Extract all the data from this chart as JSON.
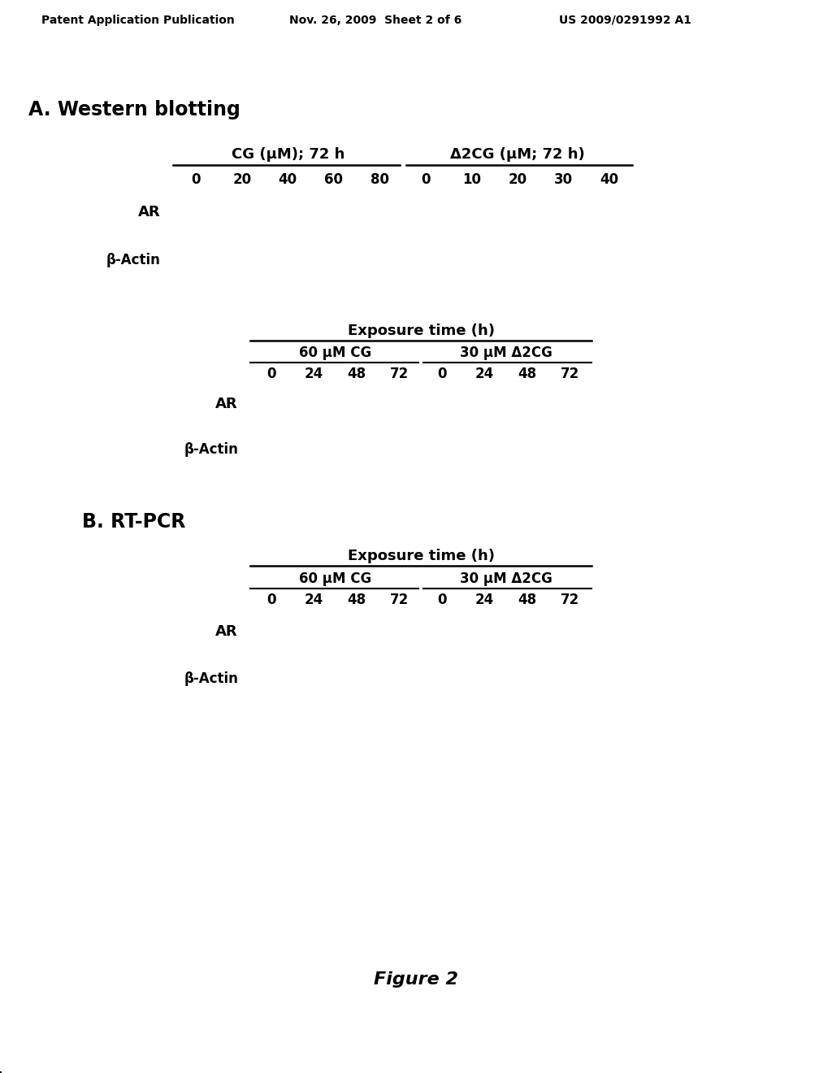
{
  "bg_color": "#ffffff",
  "header_left": "Patent Application Publication",
  "header_mid": "Nov. 26, 2009  Sheet 2 of 6",
  "header_right": "US 2009/0291992 A1",
  "section_A_title": "A. Western blotting",
  "section_B_title": "B. RT-PCR",
  "figure_caption": "Figure 2",
  "panel1": {
    "col_header_left": "CG (μM); 72 h",
    "col_header_right": "Δ2CG (μM; 72 h)",
    "col_ticks": [
      "0",
      "20",
      "40",
      "60",
      "80",
      "0",
      "10",
      "20",
      "30",
      "40"
    ],
    "n_lanes": 10,
    "rows": [
      "AR",
      "β-Actin"
    ]
  },
  "panel2": {
    "exposure_title": "Exposure time (h)",
    "col_header_left": "60 μM CG",
    "col_header_right": "30 μM Δ2CG",
    "col_ticks": [
      "0",
      "24",
      "48",
      "72",
      "0",
      "24",
      "48",
      "72"
    ],
    "n_lanes": 8,
    "rows": [
      "AR",
      "β-Actin"
    ]
  },
  "panel3": {
    "exposure_title": "Exposure time (h)",
    "col_header_left": "60 μM CG",
    "col_header_right": "30 μM Δ2CG",
    "col_ticks": [
      "0",
      "24",
      "48",
      "72",
      "0",
      "24",
      "48",
      "72"
    ],
    "n_lanes": 8,
    "rows": [
      "AR",
      "β-Actin"
    ]
  }
}
